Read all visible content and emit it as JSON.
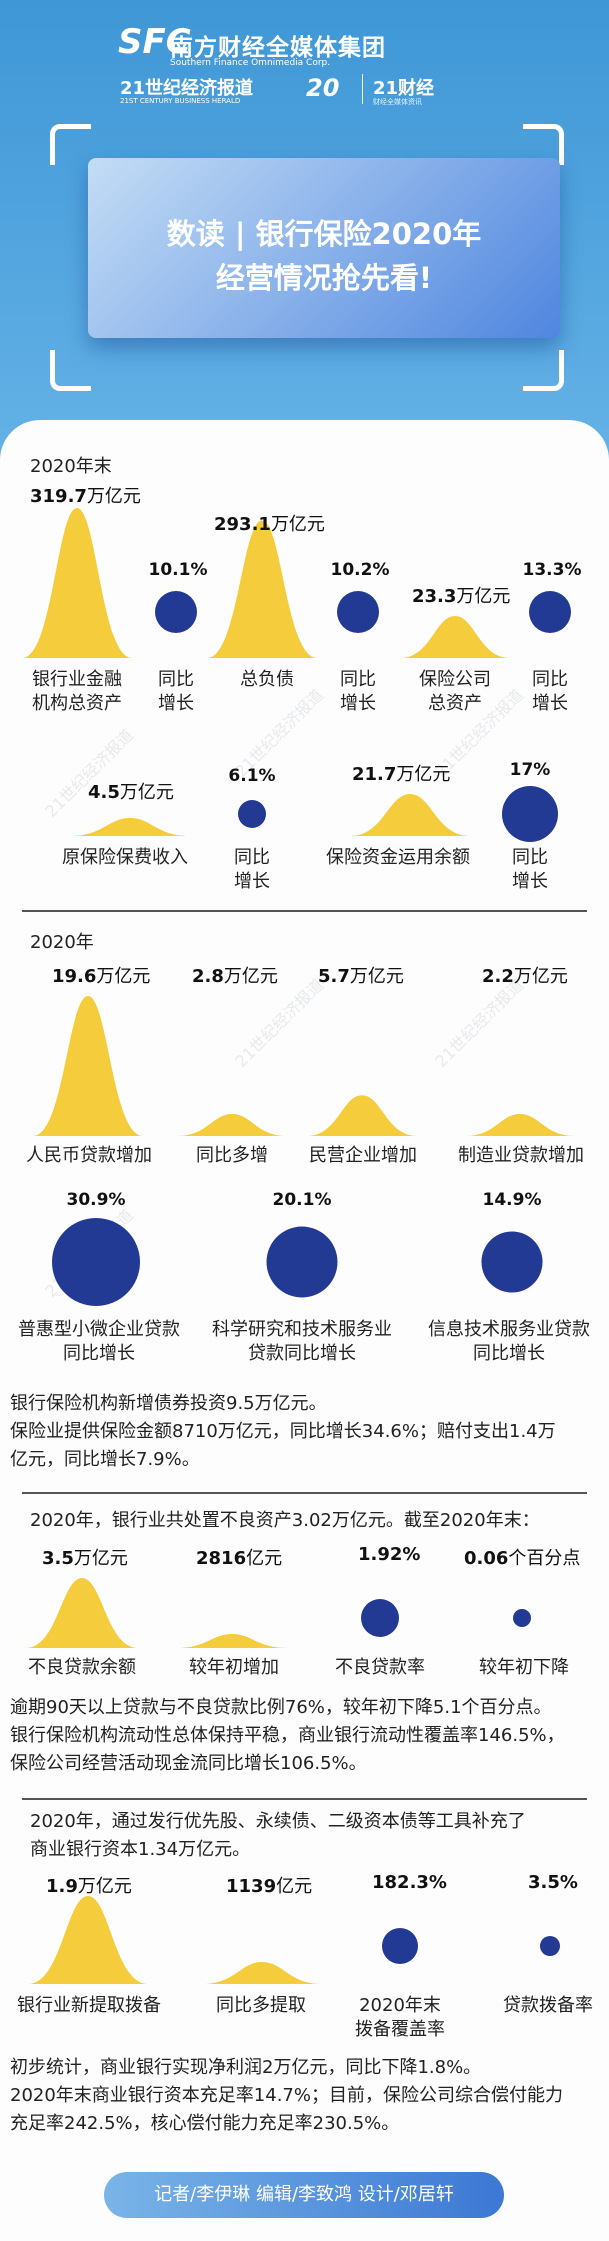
{
  "header": {
    "brand_mark": "SFC",
    "brand_cn": "南方财经全媒体集团",
    "brand_en": "Southern Finance Omnimedia Corp.",
    "paper_cn": "21世纪经济报道",
    "paper_en": "21ST CENTURY BUSINESS HERALD",
    "anniversary": "20",
    "caijing": "21财经",
    "caijing_sub": "财经全媒体资讯"
  },
  "title_lines": [
    "数读 | 银行保险2020年",
    "经营情况抢先看!"
  ],
  "colors": {
    "bar": "#f5cd3c",
    "dot": "#233a95",
    "bg_top": "#3f97d6"
  },
  "watermark": "21世纪经济报道",
  "section1": {
    "heading": "2020年末",
    "row1": [
      {
        "amount": "319.7",
        "unit": "万亿元",
        "label_lines": [
          "银行业金融",
          "机构总资产"
        ],
        "growth": "10.1%",
        "growth_label_lines": [
          "同比",
          "增长"
        ]
      },
      {
        "amount": "293.1",
        "unit": "万亿元",
        "label_lines": [
          "总负债"
        ],
        "growth": "10.2%",
        "growth_label_lines": [
          "同比",
          "增长"
        ]
      },
      {
        "amount": "23.3",
        "unit": "万亿元",
        "label_lines": [
          "保险公司",
          "总资产"
        ],
        "growth": "13.3%",
        "growth_label_lines": [
          "同比",
          "增长"
        ]
      }
    ],
    "row2": [
      {
        "amount": "4.5",
        "unit": "万亿元",
        "label_lines": [
          "原保险保费收入"
        ],
        "growth": "6.1%",
        "growth_label_lines": [
          "同比",
          "增长"
        ]
      },
      {
        "amount": "21.7",
        "unit": "万亿元",
        "label_lines": [
          "保险资金运用余额"
        ],
        "growth": "17%",
        "growth_label_lines": [
          "同比",
          "增长"
        ]
      }
    ]
  },
  "section2": {
    "heading": "2020年",
    "loans": [
      {
        "amount": "19.6",
        "unit": "万亿元",
        "label": "人民币贷款增加"
      },
      {
        "amount": "2.8",
        "unit": "万亿元",
        "label": "同比多增"
      },
      {
        "amount": "5.7",
        "unit": "万亿元",
        "label": "民营企业增加"
      },
      {
        "amount": "2.2",
        "unit": "万亿元",
        "label": "制造业贷款增加"
      }
    ],
    "growths": [
      {
        "value": "30.9%",
        "label_lines": [
          "普惠型小微企业贷款",
          "同比增长"
        ]
      },
      {
        "value": "20.1%",
        "label_lines": [
          "科学研究和技术服务业",
          "贷款同比增长"
        ]
      },
      {
        "value": "14.9%",
        "label_lines": [
          "信息技术服务业贷款",
          "同比增长"
        ]
      }
    ],
    "paras": [
      "银行保险机构新增债券投资9.5万亿元。",
      "保险业提供保险金额8710万亿元，同比增长34.6%；赔付支出1.4万",
      "亿元，同比增长7.9%。"
    ]
  },
  "section3": {
    "heading": "2020年，银行业共处置不良资产3.02万亿元。截至2020年末：",
    "items": [
      {
        "amount": "3.5",
        "unit": "万亿元",
        "label": "不良贷款余额",
        "kind": "bar"
      },
      {
        "amount": "2816",
        "unit": "亿元",
        "label": "较年初增加",
        "kind": "bar"
      },
      {
        "amount": "1.92%",
        "unit": "",
        "label": "不良贷款率",
        "kind": "dot"
      },
      {
        "amount": "0.06",
        "unit": "个百分点",
        "label": "较年初下降",
        "kind": "dot"
      }
    ],
    "paras": [
      "逾期90天以上贷款与不良贷款比例76%，较年初下降5.1个百分点。",
      "银行保险机构流动性总体保持平稳，商业银行流动性覆盖率146.5%，",
      "保险公司经营活动现金流同比增长106.5%。"
    ]
  },
  "section4": {
    "heading_lines": [
      "2020年，通过发行优先股、永续债、二级资本债等工具补充了",
      "商业银行资本1.34万亿元。"
    ],
    "items": [
      {
        "amount": "1.9",
        "unit": "万亿元",
        "label_lines": [
          "银行业新提取拨备"
        ],
        "kind": "bar"
      },
      {
        "amount": "1139",
        "unit": "亿元",
        "label_lines": [
          "同比多提取"
        ],
        "kind": "bar"
      },
      {
        "amount": "182.3%",
        "unit": "",
        "label_lines": [
          "2020年末",
          "拨备覆盖率"
        ],
        "kind": "dot"
      },
      {
        "amount": "3.5%",
        "unit": "",
        "label_lines": [
          "贷款拨备率"
        ],
        "kind": "dot"
      }
    ],
    "paras": [
      "初步统计，商业银行实现净利润2万亿元，同比下降1.8%。",
      "2020年末商业银行资本充足率14.7%；目前，保险公司综合偿付能力",
      "充足率242.5%，核心偿付能力充足率230.5%。"
    ]
  },
  "credits": "记者/李伊琳  编辑/李致鸿  设计/邓居轩",
  "chart_data": [
    {
      "type": "bar",
      "title": "2020年末",
      "categories": [
        "银行业金融机构总资产",
        "总负债",
        "保险公司总资产",
        "原保险保费收入",
        "保险资金运用余额"
      ],
      "values": [
        319.7,
        293.1,
        23.3,
        4.5,
        21.7
      ],
      "unit": "万亿元",
      "growth": [
        10.1,
        10.2,
        13.3,
        6.1,
        17
      ]
    },
    {
      "type": "bar",
      "title": "2020年",
      "categories": [
        "人民币贷款增加",
        "同比多增",
        "民营企业增加",
        "制造业贷款增加"
      ],
      "values": [
        19.6,
        2.8,
        5.7,
        2.2
      ],
      "unit": "万亿元"
    },
    {
      "type": "bar",
      "categories": [
        "普惠型小微企业贷款同比增长",
        "科学研究和技术服务业贷款同比增长",
        "信息技术服务业贷款同比增长"
      ],
      "values": [
        30.9,
        20.1,
        14.9
      ],
      "unit": "%"
    },
    {
      "type": "bar",
      "categories": [
        "不良贷款余额",
        "较年初增加",
        "不良贷款率",
        "较年初下降"
      ],
      "values": [
        3.5,
        2816,
        1.92,
        0.06
      ],
      "unit": [
        "万亿元",
        "亿元",
        "%",
        "个百分点"
      ]
    },
    {
      "type": "bar",
      "categories": [
        "银行业新提取拨备",
        "同比多提取",
        "2020年末拨备覆盖率",
        "贷款拨备率"
      ],
      "values": [
        1.9,
        1139,
        182.3,
        3.5
      ],
      "unit": [
        "万亿元",
        "亿元",
        "%",
        "%"
      ]
    }
  ]
}
